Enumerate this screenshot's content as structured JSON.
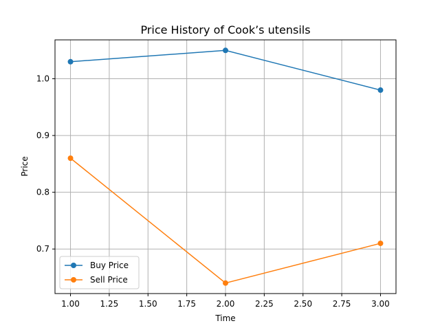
{
  "chart_data": {
    "type": "line",
    "title": "Price History of Cook’s utensils",
    "xlabel": "Time",
    "ylabel": "Price",
    "xlim": [
      0.9,
      3.1
    ],
    "ylim": [
      0.6215,
      1.0685
    ],
    "x_ticks": [
      1.0,
      1.25,
      1.5,
      1.75,
      2.0,
      2.25,
      2.5,
      2.75,
      3.0
    ],
    "x_tick_labels": [
      "1.00",
      "1.25",
      "1.50",
      "1.75",
      "2.00",
      "2.25",
      "2.50",
      "2.75",
      "3.00"
    ],
    "y_ticks": [
      0.7,
      0.8,
      0.9,
      1.0
    ],
    "y_tick_labels": [
      "0.7",
      "0.8",
      "0.9",
      "1.0"
    ],
    "grid": true,
    "legend_position": "lower-left",
    "x": [
      1,
      2,
      3
    ],
    "series": [
      {
        "name": "Buy Price",
        "values": [
          1.03,
          1.05,
          0.98
        ],
        "color": "#1f77b4",
        "marker": "circle"
      },
      {
        "name": "Sell Price",
        "values": [
          0.86,
          0.64,
          0.71
        ],
        "color": "#ff7f0e",
        "marker": "circle"
      }
    ]
  }
}
